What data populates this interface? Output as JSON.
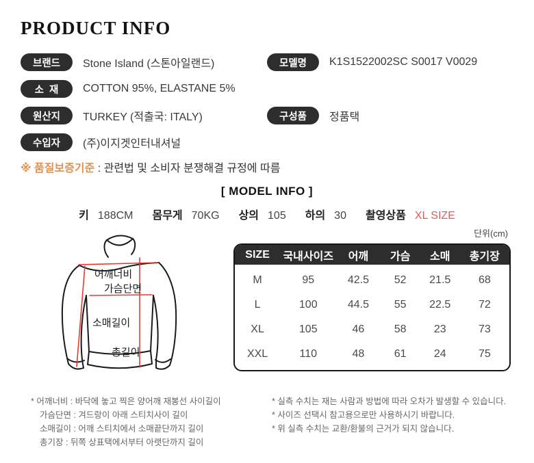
{
  "page": {
    "title": "PRODUCT INFO"
  },
  "colors": {
    "badge_bg": "#2d2d2d",
    "accent_orange": "#e0914f",
    "accent_red": "#e05b5b",
    "diagram_line_red": "#e8392e"
  },
  "product_fields": {
    "left": [
      {
        "label": "브랜드",
        "value": "Stone Island (스톤아일랜드)"
      },
      {
        "label": "소  재",
        "value": "COTTON 95%, ELASTANE 5%"
      },
      {
        "label": "원산지",
        "value": "TURKEY (적출국: ITALY)"
      },
      {
        "label": "수입자",
        "value": "(주)이지겟인터내셔널"
      }
    ],
    "right": [
      {
        "label": "모델명",
        "value": "K1S1522002SC S0017 V0029",
        "row": 0
      },
      {
        "label": "구성품",
        "value": "정품택",
        "row": 2
      }
    ]
  },
  "warranty": {
    "prefix": "※ 품질보증기준",
    "text": " : 관련법 및 소비자 분쟁해결 규정에 따름"
  },
  "model_info": {
    "title": "[ MODEL INFO ]",
    "stats": [
      {
        "label": "키",
        "value": "188CM",
        "highlight": false
      },
      {
        "label": "몸무게",
        "value": "70KG",
        "highlight": false
      },
      {
        "label": "상의",
        "value": "105",
        "highlight": false
      },
      {
        "label": "하의",
        "value": "30",
        "highlight": false
      },
      {
        "label": "촬영상품",
        "value": "XL SIZE",
        "highlight": true
      }
    ]
  },
  "size_table": {
    "unit": "단위(cm)",
    "columns": [
      "SIZE",
      "국내사이즈",
      "어깨",
      "가슴",
      "소매",
      "총기장"
    ],
    "rows": [
      {
        "size": "M",
        "values": [
          "95",
          "42.5",
          "52",
          "21.5",
          "68"
        ]
      },
      {
        "size": "L",
        "values": [
          "100",
          "44.5",
          "55",
          "22.5",
          "72"
        ]
      },
      {
        "size": "XL",
        "values": [
          "105",
          "46",
          "58",
          "23",
          "73"
        ]
      },
      {
        "size": "XXL",
        "values": [
          "110",
          "48",
          "61",
          "24",
          "75"
        ]
      }
    ]
  },
  "diagram": {
    "labels": {
      "shoulder": "어깨너비",
      "chest": "가슴단면",
      "sleeve": "소매길이",
      "length": "총길이"
    }
  },
  "footnotes": {
    "left": [
      "* 어깨너비 : 바닥에 놓고 찍은 양어깨 재봉선 사이길이",
      "가슴단면 : 겨드랑이 아래 스티치사이 길이",
      "소매길이 : 어깨 스티치에서 소매끝단까지 길이",
      "총기장 : 뒤쪽 상표택에서부터 아랫단까지 길이"
    ],
    "right": [
      "* 실측 수치는 재는 사람과 방법에 따라 오차가 발생할 수 있습니다.",
      "* 사이즈 선택시 참고용으로만 사용하시기 바랍니다.",
      "* 위 실측 수치는 교환/환불의 근거가 되지 않습니다."
    ]
  }
}
